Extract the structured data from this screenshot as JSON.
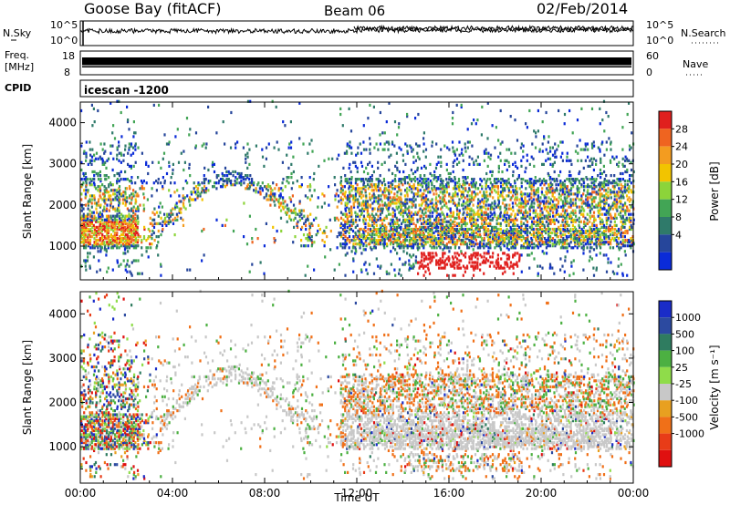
{
  "header": {
    "station": "Goose Bay (fitACF)",
    "beam": "Beam 06",
    "date": "02/Feb/2014"
  },
  "nsky_panel": {
    "left_label": "N.Sky",
    "right_label": "N.Search",
    "left_ticks": [
      "10^5",
      "10^0"
    ],
    "right_ticks": [
      "10^5",
      "10^0"
    ]
  },
  "freq_panel": {
    "left_label_1": "Freq.",
    "left_label_2": "[MHz]",
    "right_label": "Nave",
    "left_ticks": [
      "18",
      "8"
    ],
    "right_ticks": [
      "60",
      "0"
    ]
  },
  "cpid_panel": {
    "label": "CPID",
    "text": "icescan -1200"
  },
  "chart_data": [
    {
      "type": "heatmap",
      "panel": "power",
      "ylabel": "Slant Range [km]",
      "xlabel": "Time UT",
      "x_ticks": [
        "00:00",
        "04:00",
        "08:00",
        "12:00",
        "16:00",
        "20:00",
        "00:00"
      ],
      "x_range_hours": [
        0,
        24
      ],
      "y_ticks": [
        1000,
        2000,
        3000,
        4000
      ],
      "ylim": [
        180,
        4500
      ],
      "colorbar": {
        "label": "Power [dB]",
        "tick_labels": [
          "4",
          "8",
          "12",
          "16",
          "20",
          "24",
          "28"
        ],
        "colors": [
          "#0a2bd8",
          "#26469b",
          "#2f7a6a",
          "#42a555",
          "#8cd43a",
          "#f2c400",
          "#f39c20",
          "#ef6420",
          "#e0201e"
        ]
      }
    },
    {
      "type": "heatmap",
      "panel": "velocity",
      "ylabel": "Slant Range [km]",
      "xlabel": "Time UT",
      "x_ticks": [
        "00:00",
        "04:00",
        "08:00",
        "12:00",
        "16:00",
        "20:00",
        "00:00"
      ],
      "x_range_hours": [
        0,
        24
      ],
      "y_ticks": [
        1000,
        2000,
        3000,
        4000
      ],
      "ylim": [
        180,
        4500
      ],
      "colorbar": {
        "label": "Velocity [m s⁻¹]",
        "tick_labels": [
          "1000",
          "500",
          "100",
          "25",
          "-25",
          "-100",
          "-500",
          "-1000"
        ],
        "colors": [
          "#1a2cc8",
          "#2c4aa0",
          "#2f7c60",
          "#4cb042",
          "#8fdc4a",
          "#c8c8c8",
          "#e8a020",
          "#f07018",
          "#e83c18",
          "#e01010"
        ]
      }
    }
  ]
}
